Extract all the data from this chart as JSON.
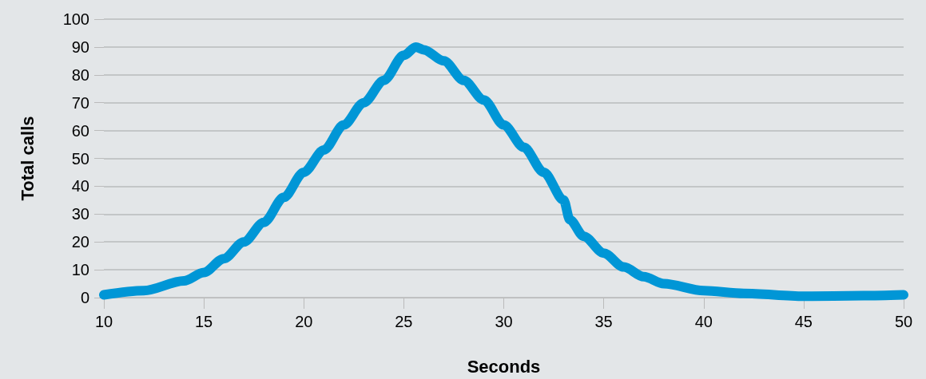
{
  "chart_data": {
    "type": "line",
    "xlabel": "Seconds",
    "ylabel": "Total calls",
    "x": [
      10,
      12,
      14,
      15,
      16,
      17,
      18,
      19,
      20,
      21,
      22,
      23,
      24,
      25,
      25.6,
      26,
      27,
      28,
      29,
      30,
      31,
      32,
      33,
      33.3,
      34,
      35,
      36,
      37,
      38,
      40,
      42,
      45,
      48,
      50
    ],
    "series": [
      {
        "color": "#0096d6",
        "values": [
          1,
          2.5,
          6,
          9,
          14,
          20,
          27,
          36,
          45,
          53,
          62,
          70,
          78,
          87,
          90,
          89,
          85,
          78,
          71,
          62,
          54,
          45,
          35,
          28,
          22,
          16,
          11,
          7.5,
          5,
          2.5,
          1.5,
          0.5,
          0.7,
          1
        ]
      }
    ],
    "xlim": [
      10,
      50
    ],
    "xticks": [
      10,
      15,
      20,
      25,
      30,
      35,
      40,
      45,
      50
    ],
    "ylim": [
      0,
      100
    ],
    "yticks": [
      0,
      10,
      20,
      30,
      40,
      50,
      60,
      70,
      80,
      90,
      100
    ],
    "grid": "y",
    "line_style": "solid"
  }
}
